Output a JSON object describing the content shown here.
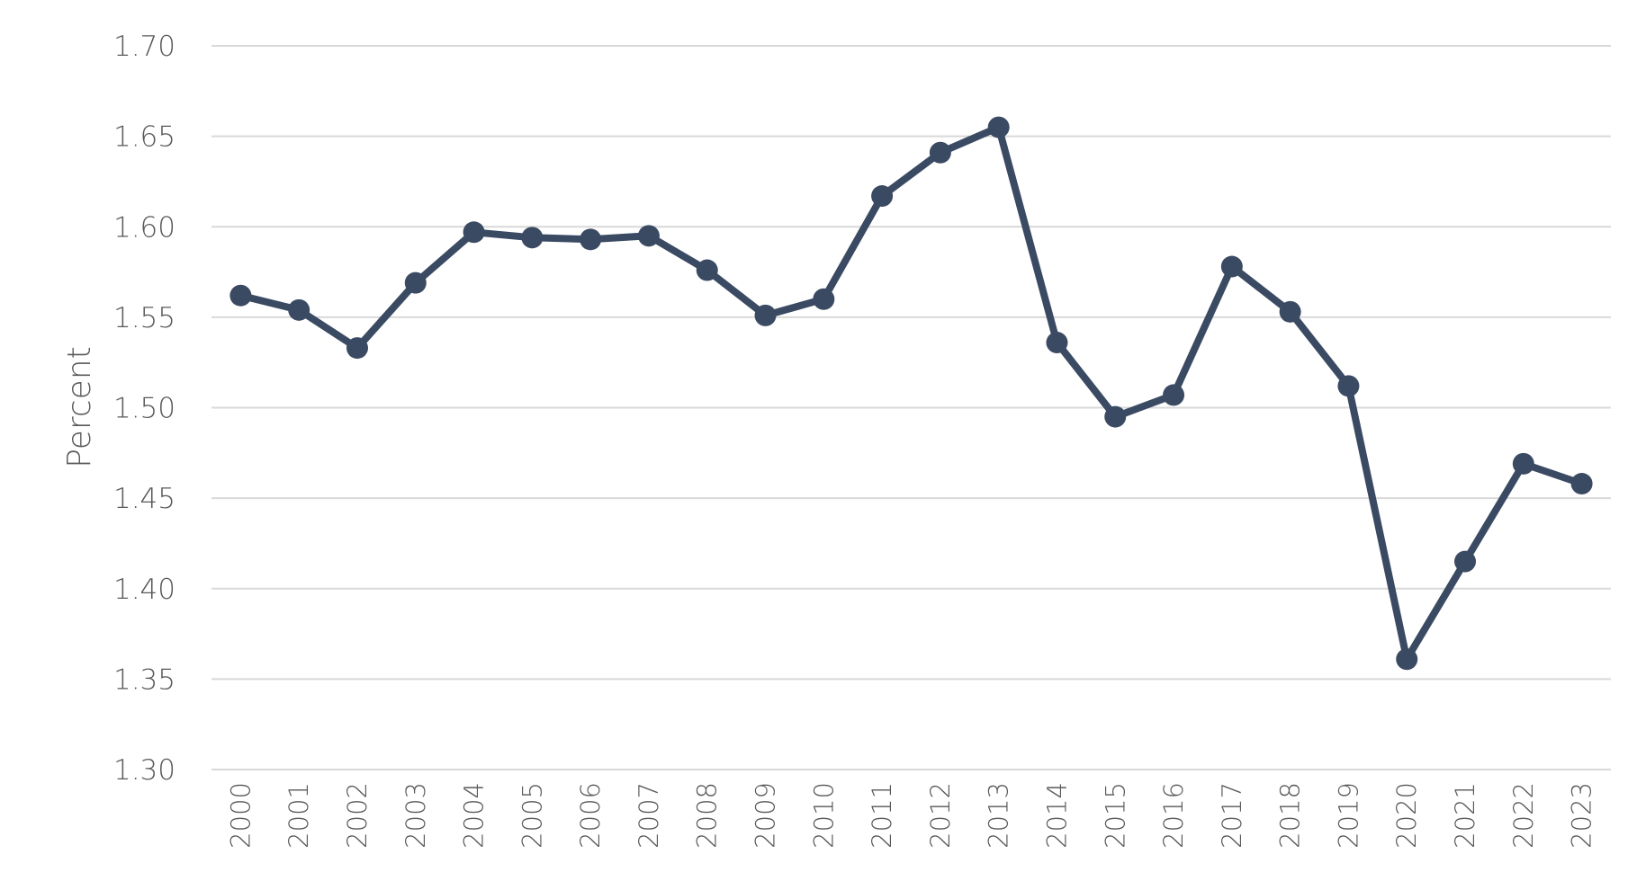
{
  "chart_data": {
    "type": "line",
    "title": "",
    "xlabel": "",
    "ylabel": "Percent",
    "ylim": [
      1.3,
      1.7
    ],
    "y_ticks": [
      "1.30",
      "1.35",
      "1.40",
      "1.45",
      "1.50",
      "1.55",
      "1.60",
      "1.65",
      "1.70"
    ],
    "grid": "horizontal",
    "legend": "none",
    "categories": [
      "2000",
      "2001",
      "2002",
      "2003",
      "2004",
      "2005",
      "2006",
      "2007",
      "2008",
      "2009",
      "2010",
      "2011",
      "2012",
      "2013",
      "2014",
      "2015",
      "2016",
      "2017",
      "2018",
      "2019",
      "2020",
      "2021",
      "2022",
      "2023"
    ],
    "series": [
      {
        "color": "#3b4a63",
        "values": [
          1.562,
          1.554,
          1.533,
          1.569,
          1.597,
          1.594,
          1.593,
          1.595,
          1.576,
          1.551,
          1.56,
          1.617,
          1.641,
          1.655,
          1.536,
          1.495,
          1.507,
          1.578,
          1.553,
          1.512,
          1.361,
          1.415,
          1.469,
          1.458
        ]
      }
    ],
    "colors": {
      "line": "#3b4a63",
      "grid": "#d9d9d9",
      "text": "#595959"
    }
  }
}
